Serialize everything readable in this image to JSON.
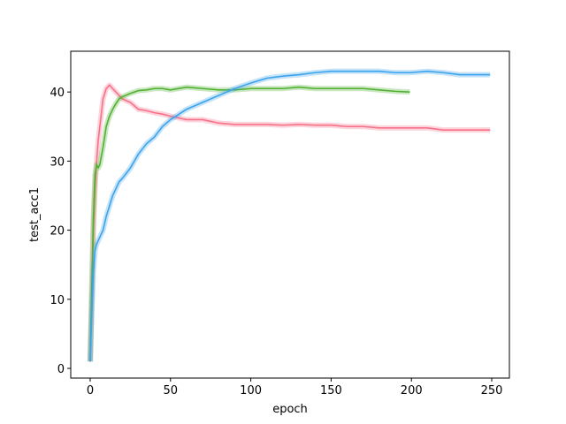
{
  "chart_data": {
    "type": "line",
    "xlabel": "epoch",
    "ylabel": "test_acc1",
    "x": [
      0,
      1,
      2,
      3,
      4,
      5,
      6,
      8,
      10,
      12,
      14,
      16,
      18,
      20,
      25,
      30,
      35,
      40,
      45,
      50,
      60,
      70,
      80,
      90,
      100,
      110,
      120,
      130,
      140,
      150,
      160,
      170,
      180,
      190,
      199,
      210,
      220,
      230,
      240,
      249
    ],
    "series": [
      {
        "color": "#f77189",
        "values": [
          1,
          10,
          20,
          26,
          30,
          33,
          35,
          39,
          40.5,
          41,
          40.5,
          40,
          39.5,
          39,
          38.5,
          37.5,
          37.3,
          37,
          36.8,
          36.5,
          36,
          36,
          35.5,
          35.3,
          35.3,
          35.3,
          35.2,
          35.3,
          35.2,
          35.2,
          35,
          35,
          34.8,
          34.8,
          34.8,
          34.8,
          34.5,
          34.5,
          34.5,
          34.5
        ]
      },
      {
        "color": "#50b131",
        "values": [
          1,
          12,
          22,
          28,
          29.5,
          29,
          29.5,
          32,
          35,
          36.5,
          37.5,
          38.3,
          39,
          39.3,
          39.8,
          40.2,
          40.3,
          40.5,
          40.5,
          40.3,
          40.7,
          40.5,
          40.3,
          40.3,
          40.5,
          40.5,
          40.5,
          40.7,
          40.5,
          40.5,
          40.5,
          40.5,
          40.3,
          40.1,
          40,
          null,
          null,
          null,
          null,
          null
        ]
      },
      {
        "color": "#3ba3ec",
        "values": [
          1,
          8,
          14,
          17,
          18,
          18.5,
          19,
          20,
          22,
          23.5,
          25,
          26,
          27,
          27.5,
          29,
          31,
          32.5,
          33.5,
          35,
          36,
          37.5,
          38.5,
          39.5,
          40.5,
          41.3,
          42,
          42.3,
          42.5,
          42.8,
          43,
          43,
          43,
          43,
          42.8,
          42.8,
          43,
          42.8,
          42.5,
          42.5,
          42.5
        ]
      }
    ],
    "xlim": [
      -12.1,
      261
    ],
    "ylim": [
      -1.4,
      45.9
    ],
    "xticks": [
      0,
      50,
      100,
      150,
      200,
      250
    ],
    "yticks": [
      0,
      10,
      20,
      30,
      40
    ],
    "grid": false
  }
}
